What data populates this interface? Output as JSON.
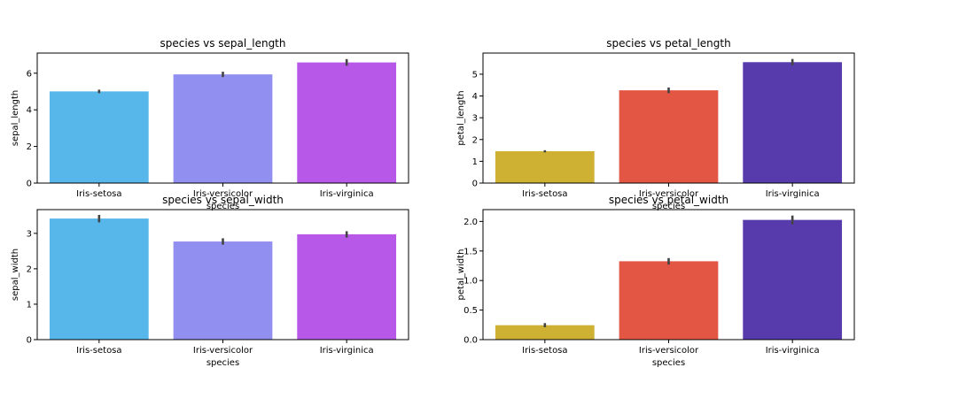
{
  "chart_data": [
    {
      "type": "bar",
      "title": "species vs sepal_length",
      "xlabel": "species",
      "ylabel": "sepal_length",
      "categories": [
        "Iris-setosa",
        "Iris-versicolor",
        "Iris-virginica"
      ],
      "values": [
        5.006,
        5.936,
        6.588
      ],
      "error": [
        [
          4.91,
          5.1
        ],
        [
          5.79,
          6.08
        ],
        [
          6.41,
          6.77
        ]
      ],
      "ylim": [
        0,
        7.1
      ],
      "yticks": [
        0,
        2,
        4,
        6
      ],
      "colors": [
        "#58b7ea",
        "#918ff0",
        "#b758e8"
      ]
    },
    {
      "type": "bar",
      "title": "species vs petal_length",
      "xlabel": "species",
      "ylabel": "petal_length",
      "categories": [
        "Iris-setosa",
        "Iris-versicolor",
        "Iris-virginica"
      ],
      "values": [
        1.464,
        4.26,
        5.552
      ],
      "error": [
        [
          1.41,
          1.51
        ],
        [
          4.13,
          4.39
        ],
        [
          5.4,
          5.7
        ]
      ],
      "ylim": [
        0,
        5.97
      ],
      "yticks": [
        0,
        1,
        2,
        3,
        4,
        5
      ],
      "colors": [
        "#ceb032",
        "#e35644",
        "#573bac"
      ]
    },
    {
      "type": "bar",
      "title": "species vs sepal_width",
      "xlabel": "species",
      "ylabel": "sepal_width",
      "categories": [
        "Iris-setosa",
        "Iris-versicolor",
        "Iris-virginica"
      ],
      "values": [
        3.418,
        2.77,
        2.974
      ],
      "error": [
        [
          3.31,
          3.52
        ],
        [
          2.68,
          2.86
        ],
        [
          2.88,
          3.06
        ]
      ],
      "ylim": [
        0,
        3.67
      ],
      "yticks": [
        0,
        1,
        2,
        3
      ],
      "colors": [
        "#58b7ea",
        "#918ff0",
        "#b758e8"
      ]
    },
    {
      "type": "bar",
      "title": "species vs petal_width",
      "xlabel": "species",
      "ylabel": "petal_width",
      "categories": [
        "Iris-setosa",
        "Iris-versicolor",
        "Iris-virginica"
      ],
      "values": [
        0.244,
        1.326,
        2.026
      ],
      "error": [
        [
          0.21,
          0.28
        ],
        [
          1.27,
          1.38
        ],
        [
          1.95,
          2.1
        ]
      ],
      "ylim": [
        0,
        2.2
      ],
      "yticks": [
        "0.0",
        "0.5",
        "1.0",
        "1.5",
        "2.0"
      ],
      "colors": [
        "#ceb032",
        "#e35644",
        "#573bac"
      ]
    }
  ]
}
